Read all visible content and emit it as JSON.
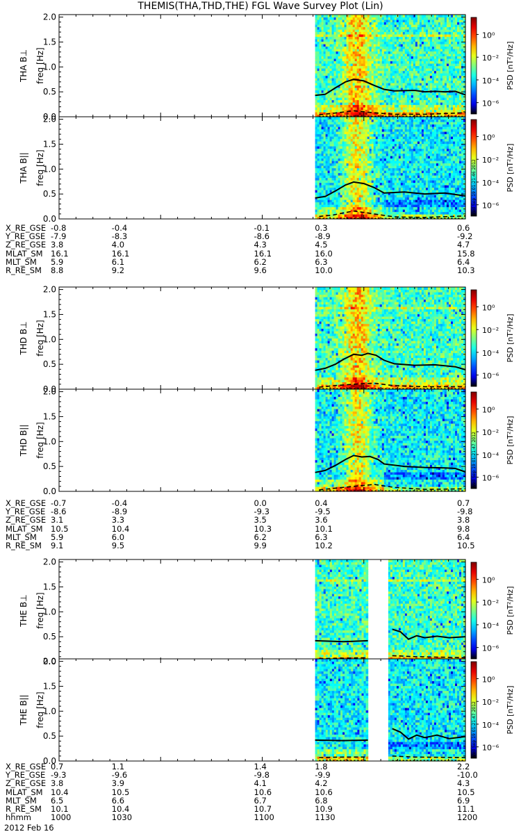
{
  "title": "THEMIS(THA,THD,THE) FGL Wave Survey Plot (Lin)",
  "y_axis_label": "freq [Hz]",
  "colorbar_label": "PSD [nT²/Hz]",
  "colorbar_ticks": [
    "10⁰",
    "10⁻²",
    "10⁻⁴",
    "10⁻⁶"
  ],
  "stamps": [
    "Wed Sep 19 01:21:46 2012",
    "Wed Sep 19 01:21:47 2012",
    "Wed Sep 19 01:21:47 2012"
  ],
  "panel_labels": [
    "THA B⊥",
    "THA B||",
    "THD B⊥",
    "THD B||",
    "THE B⊥",
    "THE B||"
  ],
  "orbit_row_labels": [
    "X_RE_GSE",
    "Y_RE_GSE",
    "Z_RE_GSE",
    "MLAT_SM",
    "MLT_SM",
    "R_RE_SM"
  ],
  "orbit_tables": [
    [
      [
        "-0.8",
        "-0.4",
        "-0.1",
        "0.3",
        "0.6"
      ],
      [
        "-7.9",
        "-8.3",
        "-8.6",
        "-8.9",
        "-9.2"
      ],
      [
        "3.8",
        "4.0",
        "4.3",
        "4.5",
        "4.7"
      ],
      [
        "16.1",
        "16.1",
        "16.1",
        "16.0",
        "15.8"
      ],
      [
        "5.9",
        "6.1",
        "6.2",
        "6.3",
        "6.4"
      ],
      [
        "8.8",
        "9.2",
        "9.6",
        "10.0",
        "10.3"
      ]
    ],
    [
      [
        "-0.7",
        "-0.4",
        "0.0",
        "0.4",
        "0.7"
      ],
      [
        "-8.6",
        "-8.9",
        "-9.3",
        "-9.5",
        "-9.8"
      ],
      [
        "3.1",
        "3.3",
        "3.5",
        "3.6",
        "3.8"
      ],
      [
        "10.5",
        "10.4",
        "10.3",
        "10.1",
        "9.8"
      ],
      [
        "5.9",
        "6.0",
        "6.2",
        "6.3",
        "6.4"
      ],
      [
        "9.1",
        "9.5",
        "9.9",
        "10.2",
        "10.5"
      ]
    ],
    [
      [
        "0.7",
        "1.1",
        "1.4",
        "1.8",
        "2.2"
      ],
      [
        "-9.3",
        "-9.6",
        "-9.8",
        "-9.9",
        "-10.0"
      ],
      [
        "3.8",
        "3.9",
        "4.1",
        "4.2",
        "4.3"
      ],
      [
        "10.4",
        "10.5",
        "10.6",
        "10.6",
        "10.5"
      ],
      [
        "6.5",
        "6.6",
        "6.7",
        "6.8",
        "6.9"
      ],
      [
        "10.1",
        "10.4",
        "10.7",
        "10.9",
        "11.1"
      ]
    ]
  ],
  "time_label": "hhmm",
  "time_ticks": [
    "1000",
    "1030",
    "1100",
    "1130",
    "1200"
  ],
  "date": "2012 Feb 16",
  "chart_data": {
    "type": "heatmap",
    "title": "THEMIS(THA,THD,THE) FGL Wave Survey Plot (Lin)",
    "ylabel": "freq [Hz]",
    "ylim": [
      0,
      2.0
    ],
    "yticks": [
      0.0,
      0.5,
      1.0,
      1.5,
      2.0
    ],
    "colorbar": {
      "scale": "log",
      "range_exp": [
        -7,
        1.5
      ],
      "ticks_exp": [
        0,
        -2,
        -4,
        -6
      ],
      "label": "PSD [nT²/Hz]"
    },
    "x_time_hhmm": [
      "1000",
      "1030",
      "1100",
      "1130",
      "1200"
    ],
    "panels": [
      {
        "label": "THA B⊥",
        "data_segments": [
          [
            1126,
            1200
          ]
        ],
        "curve": [
          [
            1126,
            0.43
          ],
          [
            1131,
            0.45
          ],
          [
            1136,
            0.58
          ],
          [
            1141,
            0.7
          ],
          [
            1145,
            0.75
          ],
          [
            1150,
            0.72
          ],
          [
            1155,
            0.63
          ],
          [
            1160,
            0.55
          ],
          [
            1165,
            0.52
          ],
          [
            1175,
            0.53
          ],
          [
            1180,
            0.5
          ],
          [
            1185,
            0.51
          ],
          [
            1190,
            0.5
          ],
          [
            1195,
            0.51
          ],
          [
            1200,
            0.44
          ]
        ],
        "dashed": [
          [
            1128,
            0.04
          ],
          [
            1135,
            0.07
          ],
          [
            1145,
            0.12
          ],
          [
            1155,
            0.08
          ],
          [
            1165,
            0.05
          ],
          [
            1180,
            0.05
          ],
          [
            1200,
            0.08
          ]
        ]
      },
      {
        "label": "THA B||",
        "data_segments": [
          [
            1126,
            1200
          ]
        ],
        "curve": [
          [
            1126,
            0.42
          ],
          [
            1131,
            0.45
          ],
          [
            1136,
            0.56
          ],
          [
            1141,
            0.68
          ],
          [
            1145,
            0.74
          ],
          [
            1150,
            0.71
          ],
          [
            1155,
            0.63
          ],
          [
            1160,
            0.52
          ],
          [
            1170,
            0.54
          ],
          [
            1180,
            0.5
          ],
          [
            1190,
            0.52
          ],
          [
            1200,
            0.46
          ]
        ],
        "dashed": [
          [
            1128,
            0.05
          ],
          [
            1135,
            0.08
          ],
          [
            1145,
            0.16
          ],
          [
            1155,
            0.1
          ],
          [
            1165,
            0.04
          ],
          [
            1180,
            0.03
          ],
          [
            1200,
            0.06
          ]
        ]
      },
      {
        "label": "THD B⊥",
        "data_segments": [
          [
            1126,
            1200
          ]
        ],
        "curve": [
          [
            1126,
            0.38
          ],
          [
            1131,
            0.42
          ],
          [
            1136,
            0.5
          ],
          [
            1140,
            0.6
          ],
          [
            1145,
            0.7
          ],
          [
            1149,
            0.68
          ],
          [
            1152,
            0.72
          ],
          [
            1156,
            0.68
          ],
          [
            1160,
            0.58
          ],
          [
            1165,
            0.51
          ],
          [
            1175,
            0.48
          ],
          [
            1185,
            0.49
          ],
          [
            1195,
            0.45
          ],
          [
            1200,
            0.39
          ]
        ],
        "dashed": [
          [
            1128,
            0.04
          ],
          [
            1135,
            0.07
          ],
          [
            1145,
            0.1
          ],
          [
            1155,
            0.12
          ],
          [
            1165,
            0.07
          ],
          [
            1180,
            0.05
          ],
          [
            1200,
            0.05
          ]
        ]
      },
      {
        "label": "THD B||",
        "data_segments": [
          [
            1126,
            1200
          ]
        ],
        "curve": [
          [
            1126,
            0.38
          ],
          [
            1131,
            0.42
          ],
          [
            1136,
            0.52
          ],
          [
            1141,
            0.64
          ],
          [
            1145,
            0.72
          ],
          [
            1149,
            0.69
          ],
          [
            1153,
            0.7
          ],
          [
            1157,
            0.64
          ],
          [
            1160,
            0.55
          ],
          [
            1170,
            0.5
          ],
          [
            1180,
            0.48
          ],
          [
            1190,
            0.47
          ],
          [
            1195,
            0.46
          ],
          [
            1200,
            0.39
          ]
        ],
        "dashed": [
          [
            1128,
            0.03
          ],
          [
            1135,
            0.06
          ],
          [
            1145,
            0.1
          ],
          [
            1155,
            0.14
          ],
          [
            1165,
            0.08
          ],
          [
            1180,
            0.04
          ],
          [
            1200,
            0.05
          ]
        ]
      },
      {
        "label": "THE B⊥",
        "data_segments": [
          [
            1126,
            1152
          ],
          [
            1162,
            1200
          ]
        ],
        "curve": [
          [
            1126,
            0.42
          ],
          [
            1140,
            0.4
          ],
          [
            1152,
            0.42
          ],
          null,
          [
            1164,
            0.65
          ],
          [
            1168,
            0.6
          ],
          [
            1172,
            0.45
          ],
          [
            1176,
            0.52
          ],
          [
            1180,
            0.48
          ],
          [
            1186,
            0.51
          ],
          [
            1192,
            0.48
          ],
          [
            1200,
            0.5
          ]
        ],
        "dashed": [
          [
            1128,
            0.06
          ],
          [
            1140,
            0.07
          ],
          [
            1152,
            0.08
          ],
          null,
          [
            1164,
            0.12
          ],
          [
            1175,
            0.1
          ],
          [
            1200,
            0.08
          ]
        ]
      },
      {
        "label": "THE B||",
        "data_segments": [
          [
            1126,
            1152
          ],
          [
            1162,
            1200
          ]
        ],
        "curve": [
          [
            1126,
            0.42
          ],
          [
            1140,
            0.41
          ],
          [
            1152,
            0.42
          ],
          null,
          [
            1164,
            0.65
          ],
          [
            1168,
            0.58
          ],
          [
            1172,
            0.44
          ],
          [
            1176,
            0.52
          ],
          [
            1180,
            0.47
          ],
          [
            1186,
            0.52
          ],
          [
            1192,
            0.45
          ],
          [
            1200,
            0.49
          ]
        ],
        "dashed": [
          [
            1128,
            0.07
          ],
          [
            1140,
            0.08
          ],
          [
            1152,
            0.08
          ],
          null,
          [
            1164,
            0.1
          ],
          [
            1175,
            0.08
          ],
          [
            1200,
            0.07
          ]
        ]
      }
    ]
  }
}
